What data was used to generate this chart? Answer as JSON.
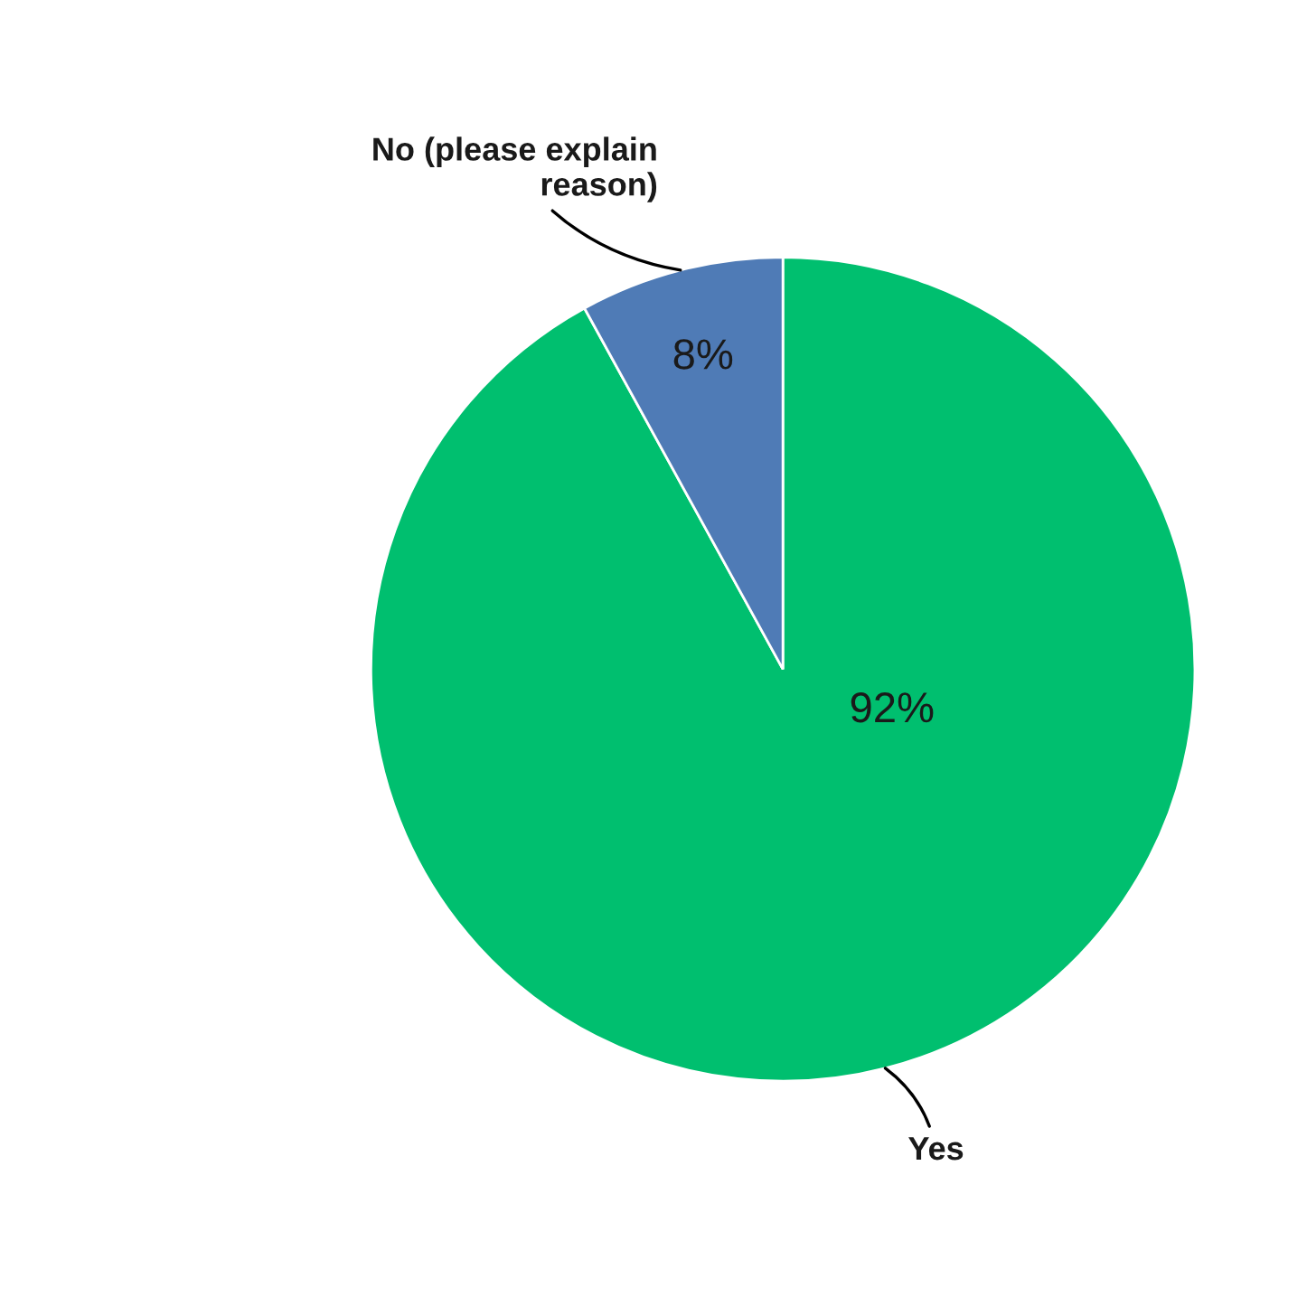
{
  "chart_data": {
    "type": "pie",
    "categories": [
      "Yes",
      "No (please explain reason)"
    ],
    "values": [
      92,
      8
    ],
    "colors": [
      "#00bf6f",
      "#4f7bb6"
    ],
    "value_labels": [
      "92%",
      "8%"
    ],
    "legend": false
  }
}
